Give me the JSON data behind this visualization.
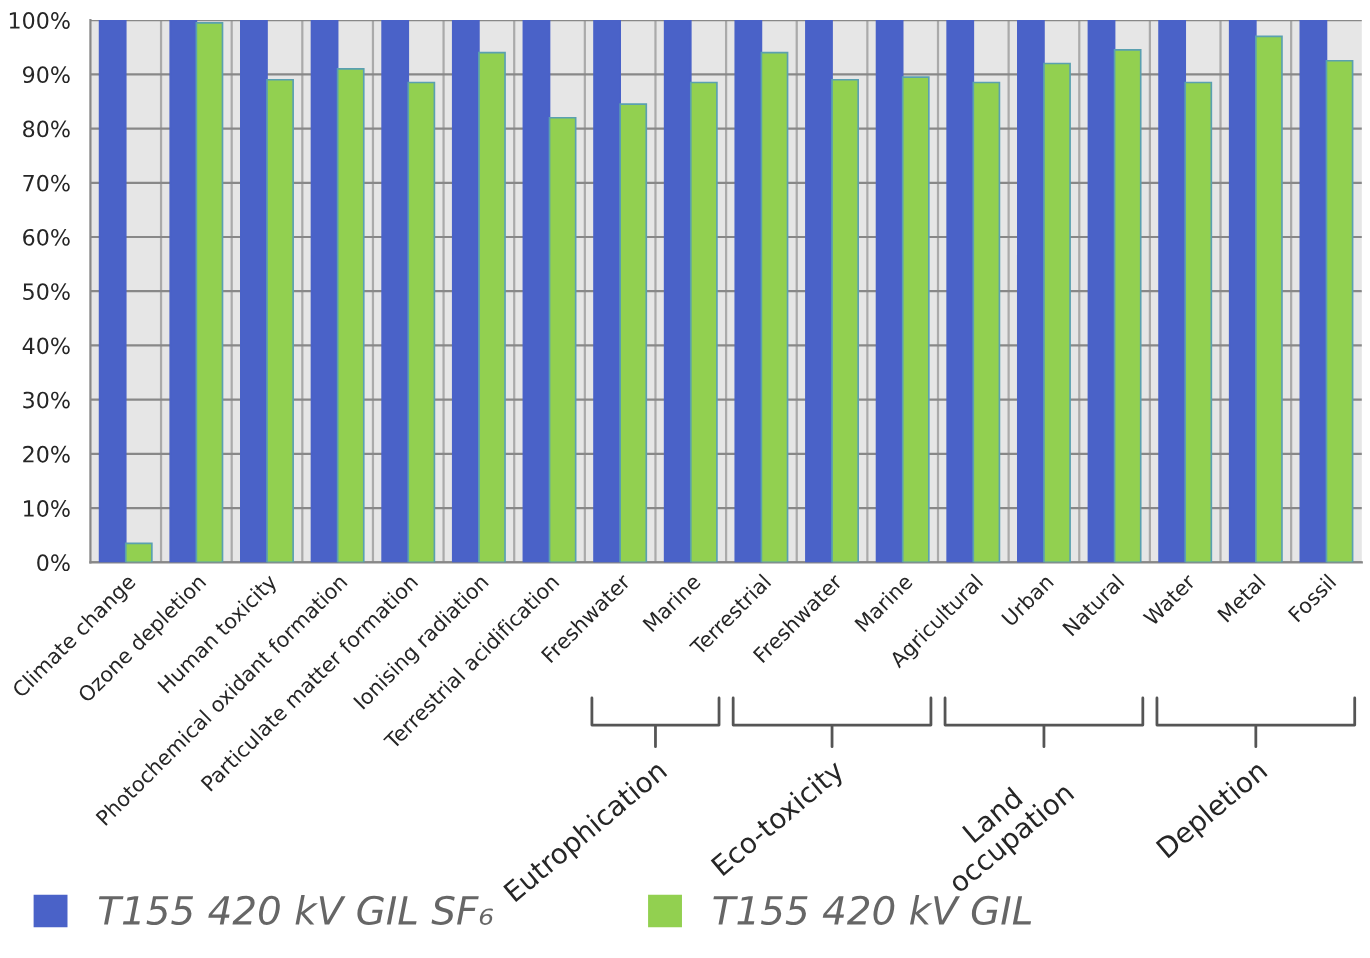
{
  "chart_data": {
    "type": "bar",
    "categories": [
      "Climate change",
      "Ozone depletion",
      "Human toxicity",
      "Photochemical oxidant formation",
      "Particulate matter formation",
      "Ionising radiation",
      "Terrestrial acidification",
      "Freshwater",
      "Marine",
      "Terrestrial",
      "Freshwater",
      "Marine",
      "Agricultural",
      "Urban",
      "Natural",
      "Water",
      "Metal",
      "Fossil"
    ],
    "series": [
      {
        "name": "T155 420 kV GIL SF₆",
        "color": "#4a62c8",
        "values": [
          100,
          100,
          100,
          100,
          100,
          100,
          100,
          100,
          100,
          100,
          100,
          100,
          100,
          100,
          100,
          100,
          100,
          100
        ]
      },
      {
        "name": "T155 420 kV GIL",
        "color": "#92d050",
        "values": [
          3.5,
          99.5,
          89,
          91,
          88.5,
          94,
          82,
          84.5,
          88.5,
          94,
          89,
          89.5,
          88.5,
          92,
          94.5,
          88.5,
          97,
          92.5
        ]
      }
    ],
    "ylim": [
      0,
      100
    ],
    "yticks": [
      {
        "value": 0,
        "label": "0%"
      },
      {
        "value": 10,
        "label": "10%"
      },
      {
        "value": 20,
        "label": "20%"
      },
      {
        "value": 30,
        "label": "30%"
      },
      {
        "value": 40,
        "label": "40%"
      },
      {
        "value": 50,
        "label": "50%"
      },
      {
        "value": 60,
        "label": "60%"
      },
      {
        "value": 70,
        "label": "70%"
      },
      {
        "value": 80,
        "label": "80%"
      },
      {
        "value": 90,
        "label": "90%"
      },
      {
        "value": 100,
        "label": "100%"
      }
    ],
    "annotations": [
      "Eutrophication",
      "Eco-toxicity",
      "Land\noccupation",
      "Depletion"
    ],
    "grid": true,
    "legend": "bottom"
  }
}
